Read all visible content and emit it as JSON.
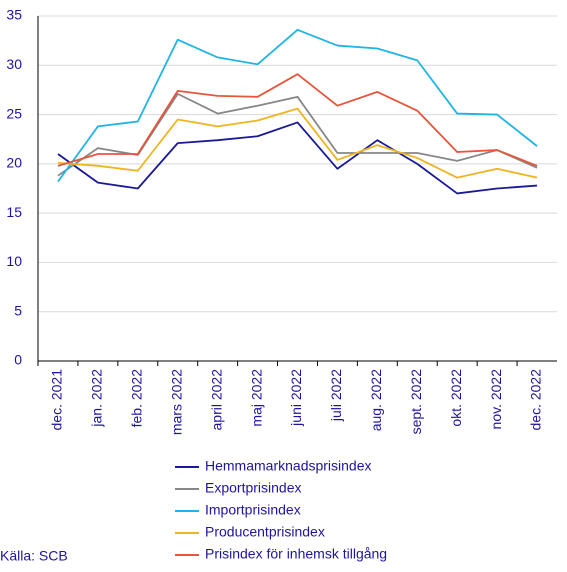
{
  "chart_data": {
    "type": "line",
    "categories": [
      "dec. 2021",
      "jan. 2022",
      "feb. 2022",
      "mars 2022",
      "april 2022",
      "maj 2022",
      "juni 2022",
      "juli 2022",
      "aug. 2022",
      "sept. 2022",
      "okt. 2022",
      "nov. 2022",
      "dec. 2022"
    ],
    "series": [
      {
        "name": "Hemmamarknadsprisindex",
        "color": "#1a1a96",
        "values": [
          21.0,
          18.1,
          17.5,
          22.1,
          22.4,
          22.8,
          24.2,
          19.5,
          22.4,
          20.0,
          17.0,
          17.5,
          17.8
        ]
      },
      {
        "name": "Exportprisindex",
        "color": "#878787",
        "values": [
          18.8,
          21.6,
          20.9,
          27.1,
          25.1,
          25.9,
          26.8,
          21.1,
          21.1,
          21.1,
          20.3,
          21.4,
          19.6
        ]
      },
      {
        "name": "Importprisindex",
        "color": "#1eb4e6",
        "values": [
          18.2,
          23.8,
          24.3,
          32.6,
          30.8,
          30.1,
          33.6,
          32.0,
          31.7,
          30.5,
          25.1,
          25.0,
          21.8
        ]
      },
      {
        "name": "Producentprisindex",
        "color": "#f0b41e",
        "values": [
          20.1,
          19.8,
          19.3,
          24.5,
          23.8,
          24.4,
          25.6,
          20.4,
          21.9,
          20.6,
          18.6,
          19.5,
          18.6
        ]
      },
      {
        "name": "Prisindex för inhemsk tillgång",
        "color": "#e6553c",
        "values": [
          19.8,
          21.0,
          21.0,
          27.4,
          26.9,
          26.8,
          29.1,
          25.9,
          27.3,
          25.4,
          21.2,
          21.4,
          19.8
        ]
      }
    ],
    "ylim": [
      0,
      35
    ],
    "yticks": [
      0,
      5,
      10,
      15,
      20,
      25,
      30,
      35
    ],
    "grid": true,
    "source": "Källa: SCB"
  }
}
